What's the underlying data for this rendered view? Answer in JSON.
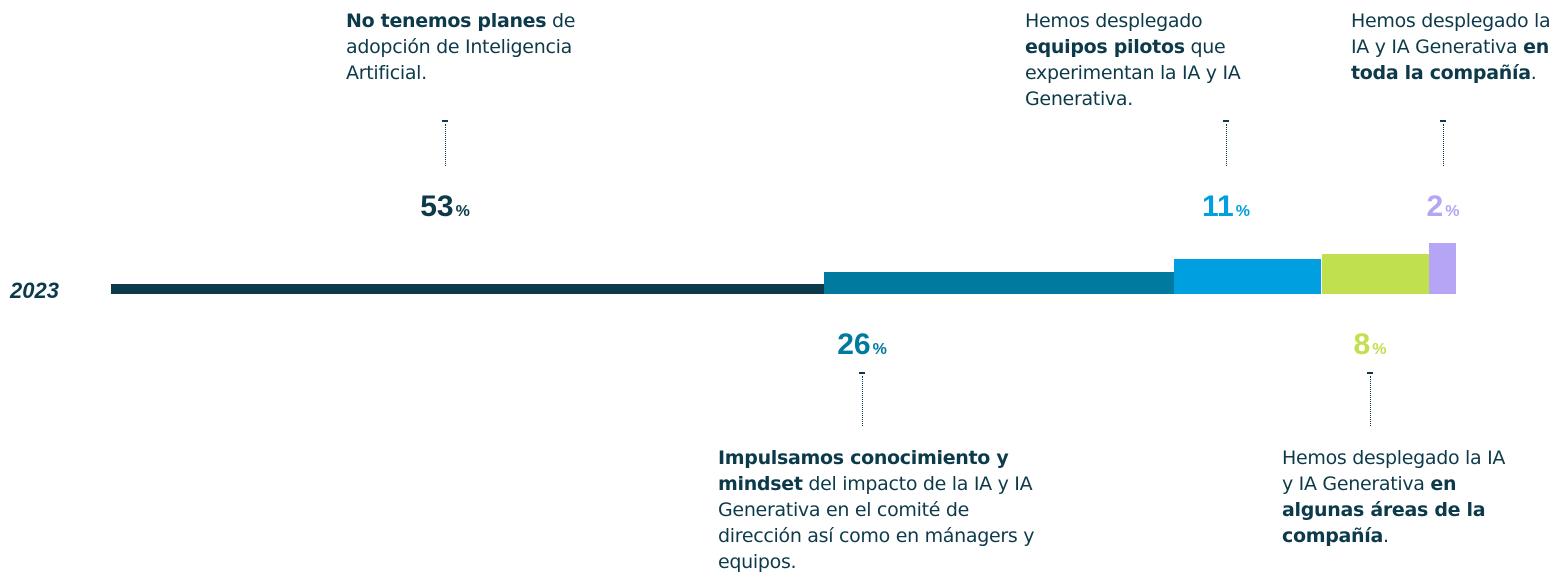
{
  "chart_data": {
    "type": "stacked-bar",
    "orientation": "horizontal",
    "category": "2023",
    "unit": "%",
    "xlim": [
      0,
      100
    ],
    "segments": [
      {
        "value": 53,
        "color": "#0d3a4a",
        "description": [
          {
            "text": "No tenemos planes",
            "bold": true
          },
          {
            "text": " de adopción de Inteligencia Artificial.",
            "bold": false
          }
        ]
      },
      {
        "value": 26,
        "color": "#007a9e",
        "description": [
          {
            "text": "Impulsamos conocimiento y mindset",
            "bold": true
          },
          {
            "text": " del impacto de la IA y IA Generativa en el comité de dirección así como en mánagers y equipos.",
            "bold": false
          }
        ]
      },
      {
        "value": 11,
        "color": "#009fdf",
        "description": [
          {
            "text": "Hemos desplegado ",
            "bold": false
          },
          {
            "text": "equipos pilotos",
            "bold": true
          },
          {
            "text": " que experimentan la IA y IA Generativa.",
            "bold": false
          }
        ]
      },
      {
        "value": 8,
        "color": "#c1e04e",
        "description": [
          {
            "text": "Hemos desplegado la IA y IA Generativa ",
            "bold": false
          },
          {
            "text": "en algunas áreas de la compañía",
            "bold": true
          },
          {
            "text": ".",
            "bold": false
          }
        ]
      },
      {
        "value": 2,
        "color": "#b6a5f5",
        "description": [
          {
            "text": "Hemos desplegado la IA y IA Generativa ",
            "bold": false
          },
          {
            "text": "en toda la compañía",
            "bold": true
          },
          {
            "text": ".",
            "bold": false
          }
        ]
      }
    ]
  }
}
